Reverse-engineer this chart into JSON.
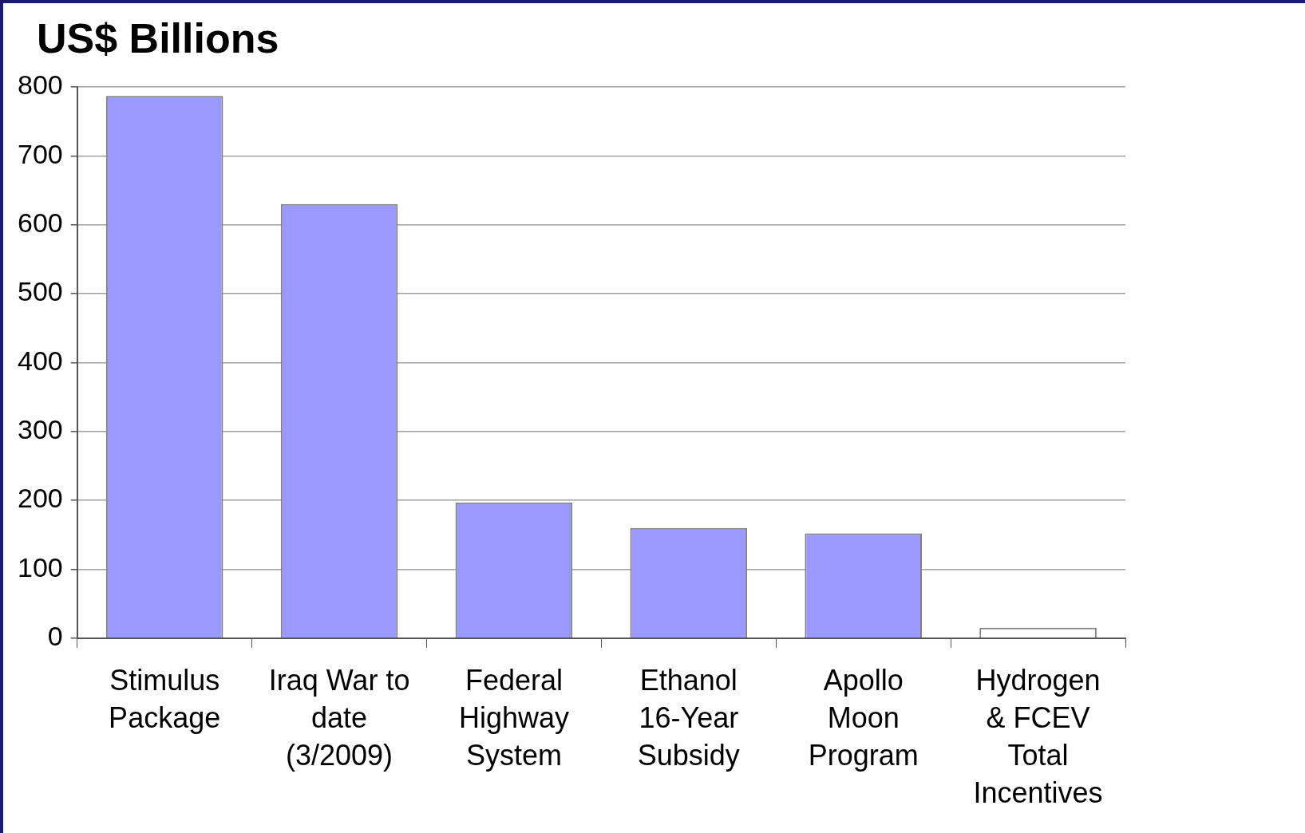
{
  "chart_data": {
    "type": "bar",
    "title": "US$ Billions",
    "categories": [
      "Stimulus Package",
      "Iraq War to date (3/2009)",
      "Federal Highway System",
      "Ethanol 16-Year Subsidy",
      "Apollo Moon Program",
      "Hydrogen & FCEV Total Incentives"
    ],
    "values": [
      787,
      630,
      197,
      160,
      152,
      15
    ],
    "colors": [
      "#9999ff",
      "#9999ff",
      "#9999ff",
      "#9999ff",
      "#9999ff",
      "#ffffff"
    ],
    "ylim": [
      0,
      800
    ],
    "yticks": [
      0,
      100,
      200,
      300,
      400,
      500,
      600,
      700,
      800
    ],
    "grid": "y"
  }
}
